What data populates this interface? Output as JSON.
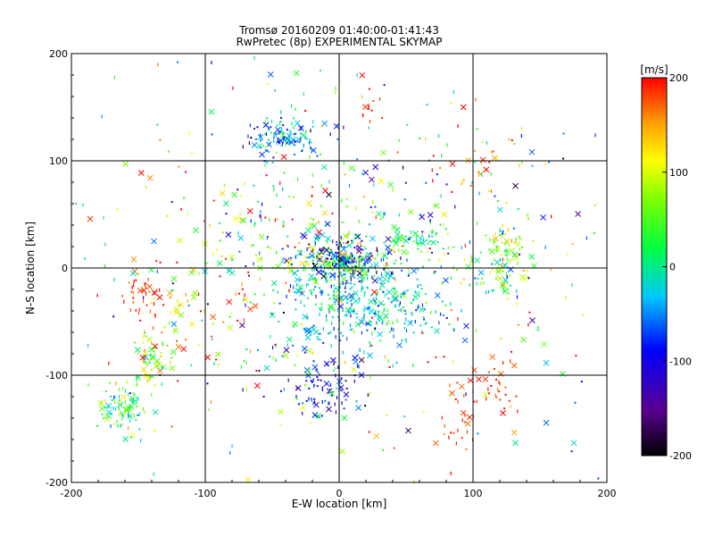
{
  "chart_data": {
    "type": "scatter",
    "title": "Tromsø 20160209 01:40:00-01:41:43",
    "subtitle": "RwPretec (8p) EXPERIMENTAL SKYMAP",
    "xlabel": "E-W location [km]",
    "ylabel": "N-S location [km]",
    "xlim": [
      -200,
      200
    ],
    "ylim": [
      -200,
      200
    ],
    "xticks": [
      -200,
      -100,
      0,
      100,
      200
    ],
    "yticks": [
      -200,
      -100,
      0,
      100,
      200
    ],
    "grid": true,
    "colorbar": {
      "label": "[m/s]",
      "range": [
        -200,
        200
      ],
      "ticks": [
        200,
        100,
        0,
        -100,
        -200
      ],
      "colormap": "rainbow (black-purple-blue-cyan-green-yellow-red)"
    },
    "clusters": [
      {
        "x": 0,
        "y": 5,
        "sx": 16,
        "sy": 10,
        "n": 260,
        "v": -40,
        "sv": 90
      },
      {
        "x": 20,
        "y": -35,
        "sx": 30,
        "sy": 22,
        "n": 330,
        "v": -20,
        "sv": 30
      },
      {
        "x": -45,
        "y": 122,
        "sx": 10,
        "sy": 8,
        "n": 80,
        "v": -40,
        "sv": 50
      },
      {
        "x": -30,
        "y": 118,
        "sx": 18,
        "sy": 12,
        "n": 40,
        "v": -70,
        "sv": 50
      },
      {
        "x": 125,
        "y": 10,
        "sx": 10,
        "sy": 20,
        "n": 110,
        "v": 60,
        "sv": 50
      },
      {
        "x": -160,
        "y": -132,
        "sx": 10,
        "sy": 12,
        "n": 90,
        "v": 20,
        "sv": 60
      },
      {
        "x": -140,
        "y": -85,
        "sx": 9,
        "sy": 15,
        "n": 55,
        "v": 70,
        "sv": 50
      },
      {
        "x": -145,
        "y": -25,
        "sx": 7,
        "sy": 15,
        "n": 40,
        "v": 190,
        "sv": 20
      },
      {
        "x": -10,
        "y": -110,
        "sx": 15,
        "sy": 15,
        "n": 80,
        "v": -85,
        "sv": 30
      },
      {
        "x": 118,
        "y": -110,
        "sx": 10,
        "sy": 15,
        "n": 35,
        "v": 190,
        "sv": 15
      },
      {
        "x": 90,
        "y": -150,
        "sx": 8,
        "sy": 20,
        "n": 25,
        "v": 190,
        "sv": 15
      },
      {
        "x": 55,
        "y": 28,
        "sx": 10,
        "sy": 4,
        "n": 40,
        "v": 10,
        "sv": 25
      },
      {
        "x": 20,
        "y": 148,
        "sx": 10,
        "sy": 10,
        "n": 12,
        "v": 195,
        "sv": 10
      },
      {
        "x": 100,
        "y": 100,
        "sx": 20,
        "sy": 12,
        "n": 25,
        "v": 170,
        "sv": 40
      },
      {
        "x": -30,
        "y": 30,
        "sx": 30,
        "sy": 30,
        "n": 90,
        "v": 60,
        "sv": 100
      },
      {
        "x": -100,
        "y": -40,
        "sx": 30,
        "sy": 40,
        "n": 80,
        "v": 120,
        "sv": 100
      },
      {
        "x": 50,
        "y": 20,
        "sx": 35,
        "sy": 40,
        "n": 90,
        "v": 0,
        "sv": 80
      },
      {
        "x": 0,
        "y": 0,
        "sx": 110,
        "sy": 110,
        "n": 480,
        "v": 20,
        "sv": 110
      }
    ]
  }
}
